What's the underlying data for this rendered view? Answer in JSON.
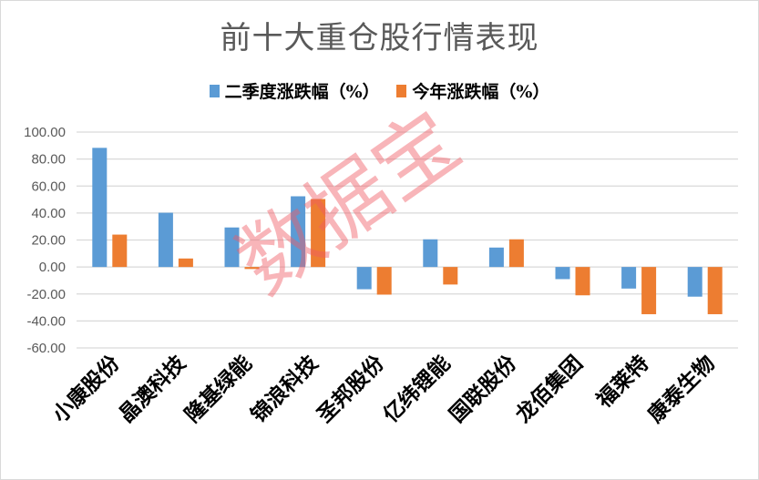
{
  "chart_data": {
    "type": "bar",
    "title": "前十大重仓股行情表现",
    "categories": [
      "小康股份",
      "晶澳科技",
      "隆基绿能",
      "锦浪科技",
      "圣邦股份",
      "亿纬锂能",
      "国联股份",
      "龙佰集团",
      "福莱特",
      "康泰生物"
    ],
    "series": [
      {
        "name": "二季度涨跌幅（%）",
        "color": "#5b9bd5",
        "values": [
          88.3,
          40.2,
          29.3,
          52.4,
          -16.5,
          20.5,
          14.4,
          -9.0,
          -16.0,
          -22.0
        ]
      },
      {
        "name": "今年涨跌幅（%）",
        "color": "#ed7d31",
        "values": [
          24.0,
          6.3,
          -1.5,
          50.4,
          -20.5,
          -13.0,
          20.5,
          -21.0,
          -35.0,
          -35.0
        ]
      }
    ],
    "ylim": [
      -60,
      100
    ],
    "yticks": [
      "100.00",
      "80.00",
      "60.00",
      "40.00",
      "20.00",
      "0.00",
      "-20.00",
      "-40.00",
      "-60.00"
    ],
    "ytick_values": [
      100,
      80,
      60,
      40,
      20,
      0,
      -20,
      -40,
      -60
    ],
    "grid": true,
    "legend_position": "top"
  },
  "watermark": "数据宝"
}
